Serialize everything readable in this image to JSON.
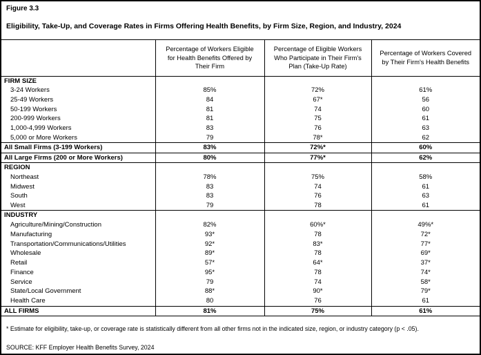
{
  "figure": {
    "label": "Figure 3.3",
    "title": "Eligibility, Take-Up, and Coverage Rates in Firms Offering Health Benefits, by Firm Size, Region, and Industry, 2024"
  },
  "table": {
    "columns": [
      "Percentage of Workers Eligible for Health Benefits Offered by Their Firm",
      "Percentage of Eligible Workers Who Participate in Their Firm's Plan (Take-Up Rate)",
      "Percentage of Workers Covered by Their Firm's Health Benefits"
    ],
    "rows": [
      {
        "type": "section",
        "label": "FIRM SIZE",
        "values": [
          "",
          "",
          ""
        ]
      },
      {
        "type": "data",
        "label": "3-24 Workers",
        "values": [
          "85%",
          "72%",
          "61%"
        ]
      },
      {
        "type": "data",
        "label": "25-49 Workers",
        "values": [
          "84",
          "67*",
          "56"
        ]
      },
      {
        "type": "data",
        "label": "50-199 Workers",
        "values": [
          "81",
          "74",
          "60"
        ]
      },
      {
        "type": "data",
        "label": "200-999 Workers",
        "values": [
          "81",
          "75",
          "61"
        ]
      },
      {
        "type": "data",
        "label": "1,000-4,999 Workers",
        "values": [
          "83",
          "76",
          "63"
        ]
      },
      {
        "type": "data",
        "label": "5,000 or More Workers",
        "values": [
          "79",
          "78*",
          "62"
        ]
      },
      {
        "type": "summary",
        "label": "All Small Firms (3-199 Workers)",
        "values": [
          "83%",
          "72%*",
          "60%"
        ]
      },
      {
        "type": "summary",
        "label": "All Large Firms (200 or More Workers)",
        "values": [
          "80%",
          "77%*",
          "62%"
        ]
      },
      {
        "type": "section",
        "label": "REGION",
        "values": [
          "",
          "",
          ""
        ]
      },
      {
        "type": "data",
        "label": "Northeast",
        "values": [
          "78%",
          "75%",
          "58%"
        ]
      },
      {
        "type": "data",
        "label": "Midwest",
        "values": [
          "83",
          "74",
          "61"
        ]
      },
      {
        "type": "data",
        "label": "South",
        "values": [
          "83",
          "76",
          "63"
        ]
      },
      {
        "type": "data",
        "label": "West",
        "values": [
          "79",
          "78",
          "61"
        ]
      },
      {
        "type": "section",
        "label": "INDUSTRY",
        "values": [
          "",
          "",
          ""
        ]
      },
      {
        "type": "data",
        "label": "Agriculture/Mining/Construction",
        "values": [
          "82%",
          "60%*",
          "49%*"
        ]
      },
      {
        "type": "data",
        "label": "Manufacturing",
        "values": [
          "93*",
          "78",
          "72*"
        ]
      },
      {
        "type": "data",
        "label": "Transportation/Communications/Utilities",
        "values": [
          "92*",
          "83*",
          "77*"
        ]
      },
      {
        "type": "data",
        "label": "Wholesale",
        "values": [
          "89*",
          "78",
          "69*"
        ]
      },
      {
        "type": "data",
        "label": "Retail",
        "values": [
          "57*",
          "64*",
          "37*"
        ]
      },
      {
        "type": "data",
        "label": "Finance",
        "values": [
          "95*",
          "78",
          "74*"
        ]
      },
      {
        "type": "data",
        "label": "Service",
        "values": [
          "79",
          "74",
          "58*"
        ]
      },
      {
        "type": "data",
        "label": "State/Local Government",
        "values": [
          "88*",
          "90*",
          "79*"
        ]
      },
      {
        "type": "data",
        "label": "Health Care",
        "values": [
          "80",
          "76",
          "61"
        ]
      },
      {
        "type": "total",
        "label": "ALL FIRMS",
        "values": [
          "81%",
          "75%",
          "61%"
        ]
      }
    ]
  },
  "footnote": "* Estimate for eligibility, take-up, or coverage rate is statistically different from all other firms not in the indicated size, region, or industry category (p < .05).",
  "source": "SOURCE: KFF Employer Health Benefits Survey, 2024"
}
